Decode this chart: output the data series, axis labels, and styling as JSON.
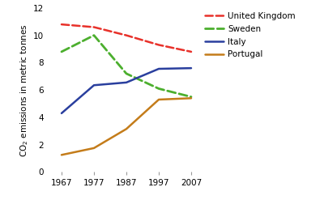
{
  "years": [
    1967,
    1977,
    1987,
    1997,
    2007
  ],
  "series": {
    "United Kingdom": {
      "values": [
        10.8,
        10.6,
        10.0,
        9.3,
        8.8
      ],
      "color": "#e8312a",
      "linestyle": "--",
      "linewidth": 1.8,
      "dashes": [
        5,
        3
      ]
    },
    "Sweden": {
      "values": [
        8.8,
        10.0,
        7.2,
        6.1,
        5.5
      ],
      "color": "#4caf2e",
      "linestyle": "--",
      "linewidth": 2.0,
      "dashes": [
        6,
        3
      ]
    },
    "Italy": {
      "values": [
        4.3,
        6.35,
        6.55,
        7.55,
        7.6
      ],
      "color": "#2a3f9e",
      "linestyle": "-",
      "linewidth": 1.8,
      "dashes": null
    },
    "Portugal": {
      "values": [
        1.25,
        1.75,
        3.15,
        5.3,
        5.4
      ],
      "color": "#c47c1a",
      "linestyle": "-",
      "linewidth": 1.8,
      "dashes": null
    }
  },
  "ylabel": "CO$_2$ emissions in metric tonnes",
  "ylim": [
    0,
    12
  ],
  "yticks": [
    0,
    2,
    4,
    6,
    8,
    10,
    12
  ],
  "xlim": [
    1964,
    2010
  ],
  "xticks": [
    1967,
    1977,
    1987,
    1997,
    2007
  ],
  "background_color": "#ffffff",
  "legend_order": [
    "United Kingdom",
    "Sweden",
    "Italy",
    "Portugal"
  ],
  "legend_fontsize": 7.5,
  "ylabel_fontsize": 7.5,
  "tick_fontsize": 7.5,
  "border_color": "#cc0000"
}
